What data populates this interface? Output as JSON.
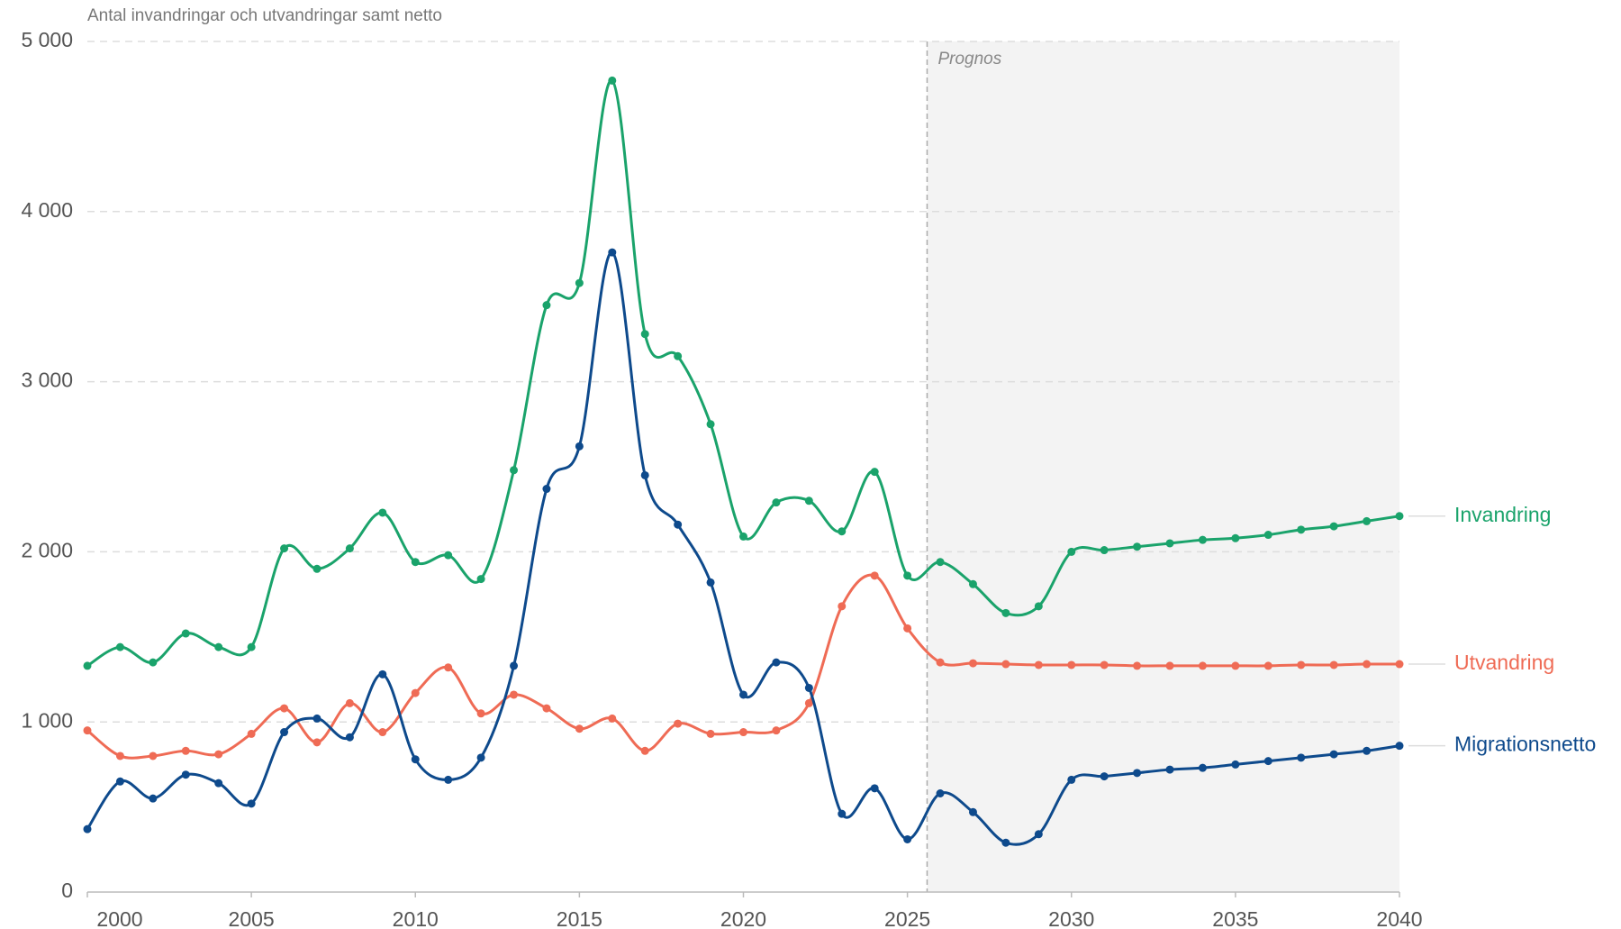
{
  "chart_data": {
    "type": "line",
    "title": "Antal invandringar och utvandringar samt netto",
    "x": [
      2000,
      2001,
      2002,
      2003,
      2004,
      2005,
      2006,
      2007,
      2008,
      2009,
      2010,
      2011,
      2012,
      2013,
      2014,
      2015,
      2016,
      2017,
      2018,
      2019,
      2020,
      2021,
      2022,
      2023,
      2024,
      2025,
      2026,
      2027,
      2028,
      2029,
      2030,
      2031,
      2032,
      2033,
      2034,
      2035,
      2036,
      2037,
      2038,
      2039,
      2040
    ],
    "series": [
      {
        "name": "Invandring",
        "color": "#1aa36b",
        "values": [
          1330,
          1440,
          1350,
          1520,
          1440,
          1440,
          2020,
          1900,
          2020,
          2230,
          1940,
          1980,
          1840,
          2480,
          3450,
          3580,
          4770,
          3280,
          3150,
          2750,
          2090,
          2290,
          2300,
          2120,
          2470,
          1860,
          1940,
          1810,
          1640,
          1680,
          2000,
          2010,
          2030,
          2050,
          2070,
          2080,
          2100,
          2130,
          2150,
          2180,
          2210
        ]
      },
      {
        "name": "Utvandring",
        "color": "#ef6b55",
        "values": [
          950,
          800,
          800,
          830,
          810,
          930,
          1080,
          880,
          1110,
          940,
          1170,
          1320,
          1050,
          1160,
          1080,
          960,
          1020,
          830,
          990,
          930,
          940,
          950,
          1110,
          1680,
          1860,
          1550,
          1350,
          1345,
          1340,
          1335,
          1335,
          1335,
          1330,
          1330,
          1330,
          1330,
          1330,
          1335,
          1335,
          1340,
          1340
        ]
      },
      {
        "name": "Migrationsnetto",
        "color": "#0e4a8c",
        "values": [
          370,
          650,
          550,
          690,
          640,
          520,
          940,
          1020,
          910,
          1280,
          780,
          660,
          790,
          1330,
          2370,
          2620,
          3760,
          2450,
          2160,
          1820,
          1160,
          1350,
          1200,
          460,
          610,
          310,
          580,
          470,
          290,
          340,
          660,
          680,
          700,
          720,
          730,
          750,
          770,
          790,
          810,
          830,
          860
        ]
      }
    ],
    "xlim": [
      2000,
      2040
    ],
    "xticks": [
      2000,
      2005,
      2010,
      2015,
      2020,
      2025,
      2030,
      2035,
      2040
    ],
    "ylim": [
      0,
      5000
    ],
    "yticks": [
      0,
      {
        "value": 1000,
        "label": "1 000"
      },
      {
        "value": 2000,
        "label": "2 000"
      },
      {
        "value": 3000,
        "label": "3 000"
      },
      {
        "value": 4000,
        "label": "4 000"
      },
      {
        "value": 5000,
        "label": "5 000"
      }
    ],
    "grid": true,
    "forecast_start": 2025.6,
    "forecast_label": "Prognos"
  }
}
